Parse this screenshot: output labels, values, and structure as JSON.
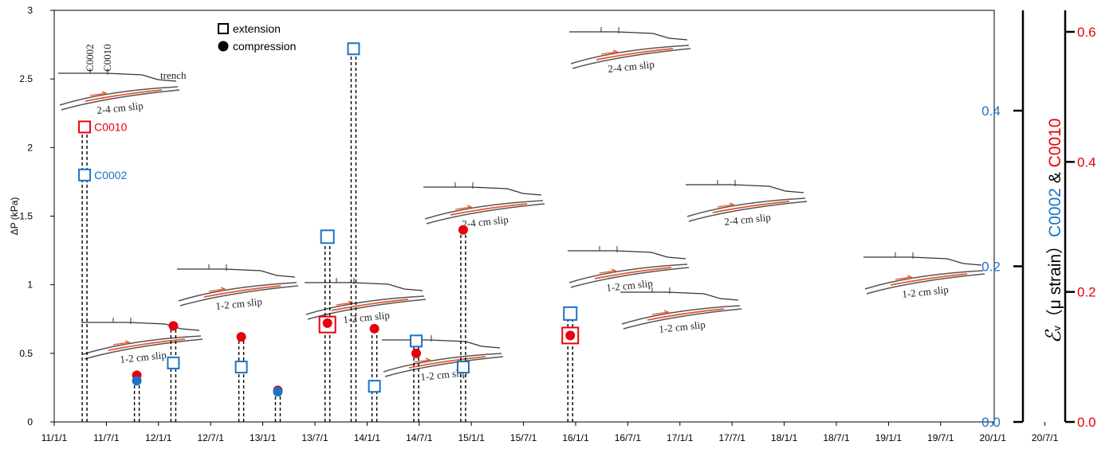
{
  "chart_data": {
    "type": "scatter",
    "title": "",
    "ylabel_left": "ΔP (kPa)",
    "ylim_left": [
      0,
      3
    ],
    "yticks_left": [
      "0",
      "0.5",
      "1",
      "1.5",
      "2",
      "2.5",
      "3"
    ],
    "x_ticks": [
      "11/1/1",
      "11/7/1",
      "12/1/1",
      "12/7/1",
      "13/1/1",
      "13/7/1",
      "14/1/1",
      "14/7/1",
      "15/1/1",
      "15/7/1",
      "16/1/1",
      "16/7/1",
      "17/1/1",
      "17/7/1",
      "18/1/1",
      "18/7/1",
      "19/1/1",
      "19/7/1",
      "20/1/1",
      "20/7/1"
    ],
    "right_axis_blue": {
      "ylim": [
        0,
        0.4
      ],
      "ticks": [
        "0.0",
        "0.2",
        "0.4"
      ],
      "color": "#1a73c7"
    },
    "right_axis_red": {
      "ylim": [
        0,
        0.6
      ],
      "ticks": [
        "0.0",
        "0.2",
        "0.4",
        "0.6"
      ],
      "color": "#e8000b"
    },
    "right_label": {
      "symbol": "ℰ",
      "sub": "v",
      "unit": "（μ strain）",
      "c0002": "C0002",
      "amp": "&",
      "c0010": "C0010"
    },
    "legend": [
      {
        "marker": "square",
        "label": "extension"
      },
      {
        "marker": "circle",
        "label": "compression"
      }
    ],
    "events": [
      {
        "x": 0.2,
        "points": [
          {
            "station": "C0010",
            "type": "extension",
            "y": 2.15
          },
          {
            "station": "C0002",
            "type": "extension",
            "y": 1.8
          }
        ],
        "labels": [
          "C0010",
          "C0002"
        ]
      },
      {
        "x": 1.2,
        "points": [
          {
            "station": "C0010",
            "type": "compression",
            "y": 0.34
          },
          {
            "station": "C0002",
            "type": "compression",
            "y": 0.3
          }
        ]
      },
      {
        "x": 1.9,
        "points": [
          {
            "station": "C0010",
            "type": "compression",
            "y": 0.7
          },
          {
            "station": "C0002",
            "type": "extension",
            "y": 0.43
          }
        ]
      },
      {
        "x": 3.2,
        "points": [
          {
            "station": "C0010",
            "type": "compression",
            "y": 0.62
          },
          {
            "station": "C0002",
            "type": "extension",
            "y": 0.4
          }
        ]
      },
      {
        "x": 3.9,
        "points": [
          {
            "station": "C0010",
            "type": "compression",
            "y": 0.23
          },
          {
            "station": "C0002",
            "type": "compression",
            "y": 0.22
          }
        ]
      },
      {
        "x": 4.85,
        "points": [
          {
            "station": "C0010",
            "type": "extension",
            "y": 0.71
          },
          {
            "station": "C0010",
            "type": "compression",
            "y": 0.72
          },
          {
            "station": "C0002",
            "type": "extension",
            "y": 1.35
          }
        ]
      },
      {
        "x": 5.35,
        "points": [
          {
            "station": "C0002",
            "type": "extension",
            "y": 2.72
          }
        ]
      },
      {
        "x": 5.75,
        "points": [
          {
            "station": "C0010",
            "type": "compression",
            "y": 0.68
          },
          {
            "station": "C0002",
            "type": "extension",
            "y": 0.26
          }
        ]
      },
      {
        "x": 6.55,
        "points": [
          {
            "station": "C0010",
            "type": "compression",
            "y": 0.5
          },
          {
            "station": "C0002",
            "type": "extension",
            "y": 0.59
          }
        ]
      },
      {
        "x": 7.45,
        "points": [
          {
            "station": "C0010",
            "type": "compression",
            "y": 1.4
          },
          {
            "station": "C0002",
            "type": "extension",
            "y": 0.4
          }
        ]
      },
      {
        "x": 9.5,
        "points": [
          {
            "station": "C0002",
            "type": "extension",
            "y": 0.79
          },
          {
            "station": "C0010",
            "type": "extension",
            "y": 0.63
          },
          {
            "station": "C0010",
            "type": "compression",
            "y": 0.63
          }
        ]
      }
    ],
    "insets": [
      {
        "slip": "2-4 cm slip",
        "well_labels": [
          "C0002",
          "C0010"
        ],
        "trench": "trench"
      },
      {
        "slip": "1-2 cm slip"
      },
      {
        "slip": "1-2 cm slip"
      },
      {
        "slip": "1-2 cm slip"
      },
      {
        "slip": "1-2 cm slip"
      },
      {
        "slip": "2-4 cm slip"
      },
      {
        "slip": "2-4 cm slip"
      },
      {
        "slip": "1-2 cm slip"
      },
      {
        "slip": "1-2 cm slip"
      },
      {
        "slip": "2-4 cm slip"
      },
      {
        "slip": "1-2 cm slip"
      }
    ],
    "colors": {
      "c0002": "#1a73c7",
      "c0010": "#e8000b",
      "fault": "#e8552e",
      "profile": "#555555"
    }
  }
}
